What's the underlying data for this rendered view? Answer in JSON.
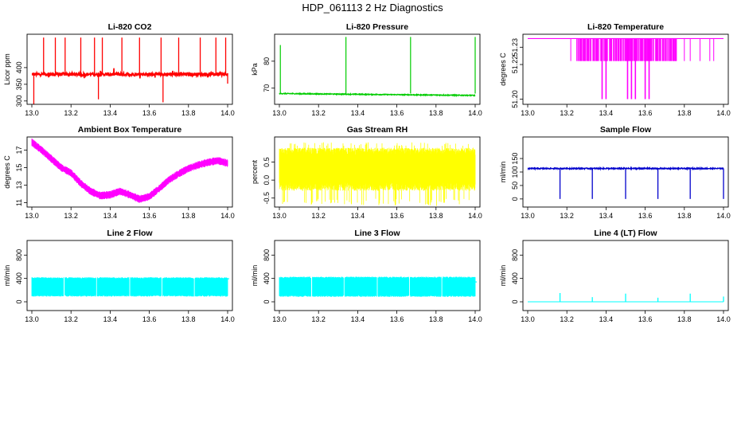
{
  "title": "HDP_061113  2 Hz Diagnostics",
  "chart_data": [
    {
      "type": "line",
      "title": "Li-820 CO2",
      "xlabel": "",
      "ylabel": "Licor ppm",
      "color": "#ff0000",
      "xlim": [
        13.0,
        14.0
      ],
      "ylim": [
        290,
        500
      ],
      "xticks": [
        "13.0",
        "13.2",
        "13.4",
        "13.6",
        "13.8",
        "14.0"
      ],
      "yticks": [
        "300",
        "350",
        "400"
      ],
      "series": [
        {
          "name": "CO2",
          "baseline": 380,
          "noise": 5,
          "spikes_up": [
            {
              "x": 13.06,
              "y": 490
            },
            {
              "x": 13.12,
              "y": 490
            },
            {
              "x": 13.17,
              "y": 490
            },
            {
              "x": 13.25,
              "y": 490
            },
            {
              "x": 13.32,
              "y": 490
            },
            {
              "x": 13.36,
              "y": 490
            },
            {
              "x": 13.46,
              "y": 490
            },
            {
              "x": 13.55,
              "y": 490
            },
            {
              "x": 13.66,
              "y": 490
            },
            {
              "x": 13.75,
              "y": 490
            },
            {
              "x": 13.86,
              "y": 490
            },
            {
              "x": 13.94,
              "y": 490
            },
            {
              "x": 13.99,
              "y": 490
            }
          ],
          "spikes_down": [
            {
              "x": 13.01,
              "y": 290
            },
            {
              "x": 13.34,
              "y": 305
            },
            {
              "x": 13.67,
              "y": 296
            },
            {
              "x": 14.0,
              "y": 352
            }
          ]
        }
      ]
    },
    {
      "type": "line",
      "title": "Li-820 Pressure",
      "xlabel": "",
      "ylabel": "kPa",
      "color": "#00cc00",
      "xlim": [
        13.0,
        14.0
      ],
      "ylim": [
        64,
        90
      ],
      "xticks": [
        "13.0",
        "13.2",
        "13.4",
        "13.6",
        "13.8",
        "14.0"
      ],
      "yticks": [
        "70",
        "80"
      ],
      "series": [
        {
          "name": "Pressure",
          "start": 68.0,
          "end": 67.3,
          "noise": 0.15,
          "spikes_up": [
            {
              "x": 13.005,
              "y": 86
            },
            {
              "x": 13.34,
              "y": 89
            },
            {
              "x": 13.67,
              "y": 89
            },
            {
              "x": 14.0,
              "y": 89
            }
          ]
        }
      ]
    },
    {
      "type": "line",
      "title": "Li-820 Temperature",
      "xlabel": "",
      "ylabel": "degrees C",
      "color": "#ff00ff",
      "xlim": [
        13.0,
        14.0
      ],
      "ylim": [
        51.197,
        51.2375
      ],
      "xticks": [
        "13.0",
        "13.2",
        "13.4",
        "13.6",
        "13.8",
        "14.0"
      ],
      "yticks": [
        "51.20",
        "51.22",
        "51.23"
      ],
      "series": [
        {
          "name": "Temperature",
          "level_high": 51.235,
          "level_low": 51.222,
          "level_min": 51.2,
          "band_start": 13.25,
          "band_end": 13.76,
          "dips_low": [
            {
              "x": 13.22,
              "y": 51.222
            },
            {
              "x": 13.8,
              "y": 51.222
            },
            {
              "x": 13.83,
              "y": 51.222
            },
            {
              "x": 13.88,
              "y": 51.222
            },
            {
              "x": 13.93,
              "y": 51.222
            },
            {
              "x": 13.95,
              "y": 51.222
            }
          ],
          "dips_min": [
            {
              "x": 13.38,
              "y": 51.2
            },
            {
              "x": 13.4,
              "y": 51.2
            },
            {
              "x": 13.51,
              "y": 51.2
            },
            {
              "x": 13.53,
              "y": 51.2
            },
            {
              "x": 13.55,
              "y": 51.2
            },
            {
              "x": 13.6,
              "y": 51.2
            },
            {
              "x": 13.62,
              "y": 51.2
            }
          ]
        }
      ]
    },
    {
      "type": "line",
      "title": "Ambient Box Temperature",
      "xlabel": "",
      "ylabel": "degrees C",
      "color": "#ff00ff",
      "xlim": [
        13.0,
        14.0
      ],
      "ylim": [
        10.5,
        18.5
      ],
      "xticks": [
        "13.0",
        "13.2",
        "13.4",
        "13.6",
        "13.8",
        "14.0"
      ],
      "yticks": [
        "11",
        "13",
        "15",
        "17"
      ],
      "series": [
        {
          "name": "Ambient",
          "band_width": 0.8,
          "x": [
            13.0,
            13.05,
            13.1,
            13.15,
            13.2,
            13.25,
            13.3,
            13.35,
            13.4,
            13.45,
            13.5,
            13.55,
            13.6,
            13.65,
            13.7,
            13.75,
            13.8,
            13.85,
            13.9,
            13.95,
            14.0
          ],
          "y": [
            17.9,
            17.0,
            16.0,
            15.0,
            14.4,
            13.2,
            12.3,
            11.8,
            11.9,
            12.3,
            11.9,
            11.4,
            11.7,
            12.6,
            13.6,
            14.3,
            14.9,
            15.3,
            15.6,
            15.8,
            15.5
          ]
        }
      ]
    },
    {
      "type": "line",
      "title": "Gas Stream RH",
      "xlabel": "",
      "ylabel": "percent",
      "color": "#ffff00",
      "xlim": [
        13.0,
        14.0
      ],
      "ylim": [
        -0.75,
        1.2
      ],
      "xticks": [
        "13.0",
        "13.2",
        "13.4",
        "13.6",
        "13.8",
        "14.0"
      ],
      "yticks": [
        "-0.5",
        "0.0",
        "0.5"
      ],
      "series": [
        {
          "name": "RH",
          "band_low": -0.3,
          "band_high": 0.9,
          "outlier_low": -0.72,
          "outlier_high": 1.05
        }
      ]
    },
    {
      "type": "line",
      "title": "Sample Flow",
      "xlabel": "",
      "ylabel": "ml/min",
      "color": "#0000cc",
      "xlim": [
        13.0,
        14.0
      ],
      "ylim": [
        -30,
        230
      ],
      "xticks": [
        "13.0",
        "13.2",
        "13.4",
        "13.6",
        "13.8",
        "14.0"
      ],
      "yticks": [
        "0",
        "50",
        "100",
        "150"
      ],
      "series": [
        {
          "name": "Sample",
          "baseline": 113,
          "noise": 2,
          "dropouts": [
            {
              "x": 13.165,
              "y": 0
            },
            {
              "x": 13.33,
              "y": 0
            },
            {
              "x": 13.5,
              "y": 0
            },
            {
              "x": 13.665,
              "y": 0
            },
            {
              "x": 13.83,
              "y": 0
            },
            {
              "x": 14.0,
              "y": 0
            }
          ]
        }
      ]
    },
    {
      "type": "line",
      "title": "Line 2 Flow",
      "xlabel": "",
      "ylabel": "ml/min",
      "color": "#00ffff",
      "xlim": [
        13.0,
        14.0
      ],
      "ylim": [
        -150,
        1050
      ],
      "xticks": [
        "13.0",
        "13.2",
        "13.4",
        "13.6",
        "13.8",
        "14.0"
      ],
      "yticks": [
        "0",
        "400",
        "800"
      ],
      "series": [
        {
          "name": "Line 2",
          "band_low": 90,
          "band_high": 420,
          "gaps": [
            13.165,
            13.33,
            13.5,
            13.665,
            13.83
          ],
          "end_value": 395
        }
      ]
    },
    {
      "type": "line",
      "title": "Line 3 Flow",
      "xlabel": "",
      "ylabel": "ml/min",
      "color": "#00ffff",
      "xlim": [
        13.0,
        14.0
      ],
      "ylim": [
        -150,
        1050
      ],
      "xticks": [
        "13.0",
        "13.2",
        "13.4",
        "13.6",
        "13.8",
        "14.0"
      ],
      "yticks": [
        "0",
        "400",
        "800"
      ],
      "series": [
        {
          "name": "Line 3",
          "band_low": 85,
          "band_high": 430,
          "gaps": [
            13.165,
            13.33,
            13.5,
            13.665,
            13.83
          ],
          "end_value": 340
        }
      ]
    },
    {
      "type": "line",
      "title": "Line 4 (LT) Flow",
      "xlabel": "",
      "ylabel": "ml/min",
      "color": "#00ffff",
      "xlim": [
        13.0,
        14.0
      ],
      "ylim": [
        -150,
        1050
      ],
      "xticks": [
        "13.0",
        "13.2",
        "13.4",
        "13.6",
        "13.8",
        "14.0"
      ],
      "yticks": [
        "0",
        "400",
        "800"
      ],
      "series": [
        {
          "name": "Line 4",
          "baseline": 0,
          "spikes_up": [
            {
              "x": 13.165,
              "y": 150
            },
            {
              "x": 13.33,
              "y": 80
            },
            {
              "x": 13.5,
              "y": 140
            },
            {
              "x": 13.665,
              "y": 70
            },
            {
              "x": 13.83,
              "y": 140
            },
            {
              "x": 14.0,
              "y": 90
            }
          ]
        }
      ]
    }
  ]
}
